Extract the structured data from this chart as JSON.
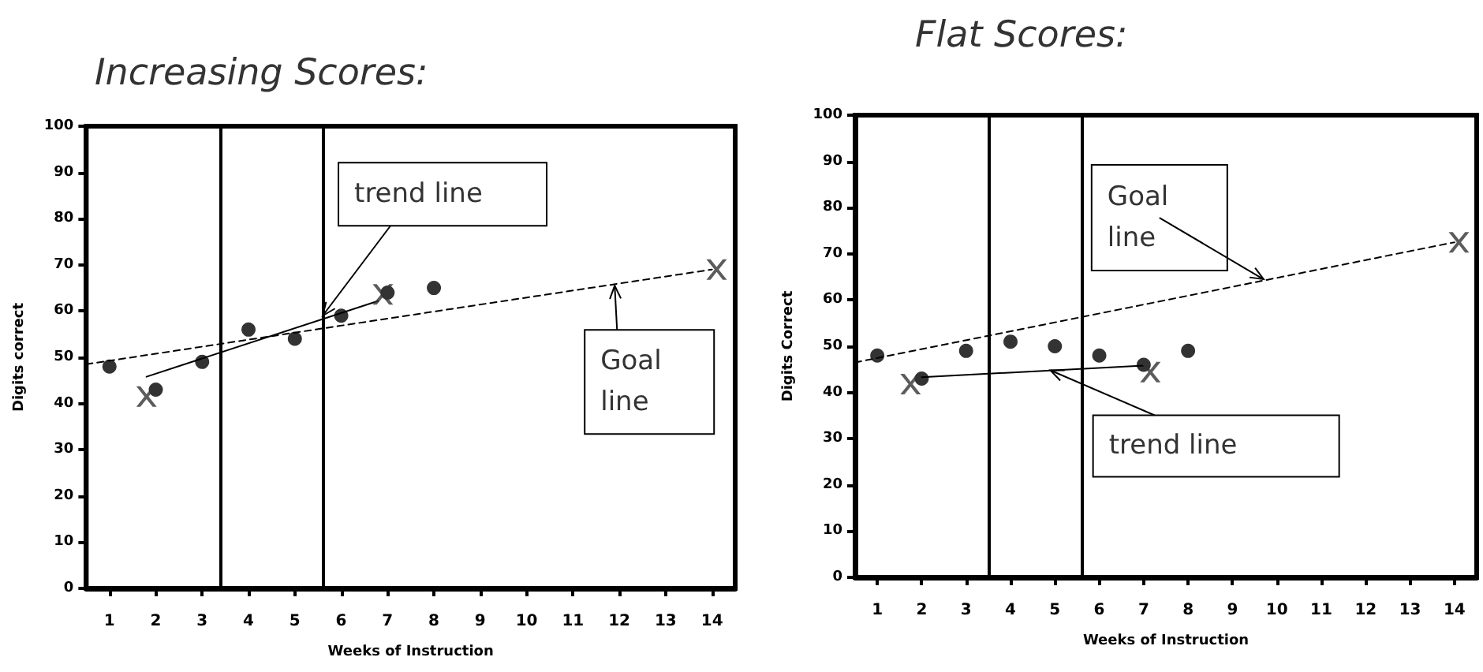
{
  "chart_data": [
    {
      "type": "scatter",
      "title": "Increasing Scores:",
      "xlabel": "Weeks of Instruction",
      "ylabel": "Digits correct",
      "xlim": [
        0.5,
        14.5
      ],
      "xticks": [
        1,
        2,
        3,
        4,
        5,
        6,
        7,
        8,
        9,
        10,
        11,
        12,
        13,
        14
      ],
      "ylim": [
        0,
        100
      ],
      "yticks": [
        0,
        10,
        20,
        30,
        40,
        50,
        60,
        70,
        80,
        90,
        100
      ],
      "grid": false,
      "series": [
        {
          "type": "scatter",
          "x": [
            1,
            2,
            3,
            4,
            5,
            6,
            7,
            8
          ],
          "values": [
            48,
            43,
            49,
            56,
            54,
            59,
            64,
            65
          ],
          "color": "#000000",
          "marker": "circle"
        },
        {
          "type": "line",
          "x": [
            0.5,
            14
          ],
          "values": [
            48.5,
            69
          ],
          "color": "#000000",
          "line_style": "dashed",
          "marker": "none"
        },
        {
          "type": "line",
          "x": [
            1.8,
            6.8
          ],
          "values": [
            45.8,
            62.2
          ],
          "color": "#000000",
          "line_style": "solid",
          "marker": "none"
        },
        {
          "type": "scatter",
          "x": [
            1.8,
            6.9,
            14.1
          ],
          "values": [
            41.5,
            63.6,
            69
          ],
          "color": "#333333",
          "marker": "cross"
        }
      ],
      "ref_lines": [
        {
          "axis": "x",
          "value": 3.4,
          "color": "#000000"
        },
        {
          "axis": "x",
          "value": 5.6,
          "color": "#000000"
        }
      ],
      "annotations": [
        {
          "text": "trend line",
          "x": 5.6,
          "y": 59
        },
        {
          "text": "Goal line",
          "x": 11.9,
          "y": 65.5
        }
      ]
    },
    {
      "type": "scatter",
      "title": "Flat Scores:",
      "xlabel": "Weeks of Instruction",
      "ylabel": "Digits Correct",
      "xlim": [
        0.5,
        14.5
      ],
      "xticks": [
        1,
        2,
        3,
        4,
        5,
        6,
        7,
        8,
        9,
        10,
        11,
        12,
        13,
        14
      ],
      "ylim": [
        0,
        100
      ],
      "yticks": [
        0,
        10,
        20,
        30,
        40,
        50,
        60,
        70,
        80,
        90,
        100
      ],
      "grid": false,
      "series": [
        {
          "type": "scatter",
          "x": [
            1,
            2,
            3,
            4,
            5,
            6,
            7,
            8
          ],
          "values": [
            48,
            43,
            49,
            51,
            50,
            48,
            46,
            49
          ],
          "color": "#000000",
          "marker": "circle"
        },
        {
          "type": "line",
          "x": [
            0.5,
            14
          ],
          "values": [
            46.5,
            72.5
          ],
          "color": "#000000",
          "line_style": "dashed",
          "marker": "none"
        },
        {
          "type": "line",
          "x": [
            2,
            7
          ],
          "values": [
            43.3,
            45.8
          ],
          "color": "#000000",
          "line_style": "solid",
          "marker": "none"
        },
        {
          "type": "scatter",
          "x": [
            1.75,
            7.15,
            14.1
          ],
          "values": [
            41.8,
            44.4,
            72.5
          ],
          "color": "#333333",
          "marker": "cross"
        }
      ],
      "ref_lines": [
        {
          "axis": "x",
          "value": 3.5,
          "color": "#000000"
        },
        {
          "axis": "x",
          "value": 5.6,
          "color": "#000000"
        }
      ],
      "annotations": [
        {
          "text": "Goal line",
          "x": 9.7,
          "y": 64.5
        },
        {
          "text": "trend line",
          "x": 4.9,
          "y": 44.8
        }
      ]
    }
  ]
}
